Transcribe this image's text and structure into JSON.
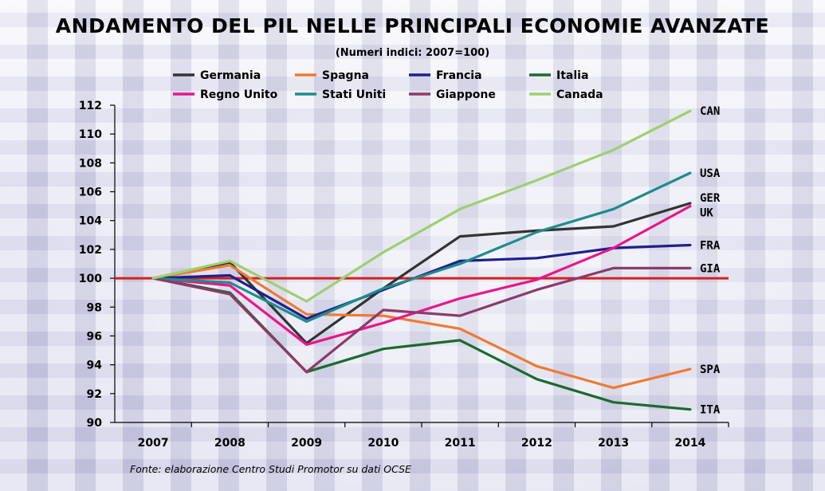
{
  "page": {
    "title": "ANDAMENTO DEL PIL NELLE PRINCIPALI ECONOMIE AVANZATE",
    "subtitle": "(Numeri indici: 2007=100)",
    "source": "Fonte: elaborazione Centro Studi Promotor su dati OCSE"
  },
  "chart_data": {
    "type": "line",
    "title": "ANDAMENTO DEL PIL NELLE PRINCIPALI ECONOMIE AVANZATE",
    "subtitle": "(Numeri indici: 2007=100)",
    "xlabel": "",
    "ylabel": "",
    "x": [
      "2007",
      "2008",
      "2009",
      "2010",
      "2011",
      "2012",
      "2013",
      "2014"
    ],
    "ylim": [
      90,
      112
    ],
    "yticks": [
      90,
      92,
      94,
      96,
      98,
      100,
      102,
      104,
      106,
      108,
      110,
      112
    ],
    "grid": false,
    "legend_position": "top",
    "reference_line": {
      "value": 100,
      "color": "#d42020"
    },
    "series": [
      {
        "name": "Germania",
        "color": "#333333",
        "end_label": "GER",
        "values": [
          100,
          101.1,
          95.5,
          99.3,
          102.9,
          103.3,
          103.6,
          105.2
        ]
      },
      {
        "name": "Spagna",
        "color": "#f07a30",
        "end_label": "SPA",
        "values": [
          100,
          100.9,
          97.5,
          97.4,
          96.5,
          93.9,
          92.4,
          93.7
        ]
      },
      {
        "name": "Francia",
        "color": "#1f1f8c",
        "end_label": "FRA",
        "values": [
          100,
          100.2,
          97.2,
          99.2,
          101.2,
          101.4,
          102.1,
          102.3
        ]
      },
      {
        "name": "Italia",
        "color": "#1a6b2e",
        "end_label": "ITA",
        "values": [
          100,
          99,
          93.5,
          95.1,
          95.7,
          93,
          91.4,
          90.9
        ]
      },
      {
        "name": "Regno Unito",
        "color": "#e8168a",
        "end_label": "UK",
        "values": [
          100,
          99.5,
          95.4,
          96.9,
          98.6,
          99.9,
          102.1,
          105
        ]
      },
      {
        "name": "Stati Uniti",
        "color": "#1e8c8c",
        "end_label": "USA",
        "values": [
          100,
          99.7,
          97,
          99.3,
          101,
          103.2,
          104.8,
          107.3
        ]
      },
      {
        "name": "Giappone",
        "color": "#8c3a6a",
        "end_label": "GIA",
        "values": [
          100,
          98.9,
          93.5,
          97.8,
          97.4,
          99.2,
          100.7,
          100.7
        ]
      },
      {
        "name": "Canada",
        "color": "#9ed070",
        "end_label": "CAN",
        "values": [
          100,
          101.2,
          98.4,
          101.8,
          104.8,
          106.8,
          108.9,
          111.6
        ]
      }
    ]
  }
}
